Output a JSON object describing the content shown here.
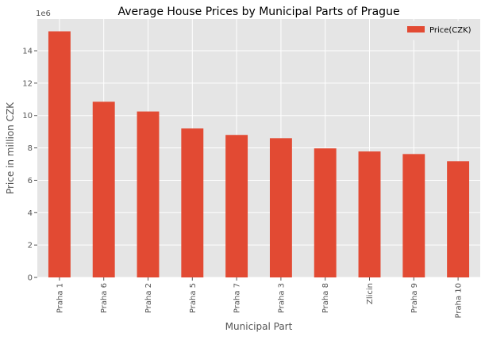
{
  "chart_data": {
    "type": "bar",
    "title": "Average House Prices by Municipal Parts of Prague",
    "xlabel": "Municipal Part",
    "ylabel": "Price in million CZK",
    "y_offset_label": "1e6",
    "categories": [
      "Praha 1",
      "Praha 6",
      "Praha 2",
      "Praha 5",
      "Praha 7",
      "Praha 3",
      "Praha 8",
      "Zlicin",
      "Praha 9",
      "Praha 10"
    ],
    "series": [
      {
        "name": "Price(CZK)",
        "color": "#E24A33",
        "values": [
          15200000,
          10850000,
          10250000,
          9200000,
          8800000,
          8600000,
          7970000,
          7780000,
          7620000,
          7180000
        ]
      }
    ],
    "y_ticks": [
      0,
      2,
      4,
      6,
      8,
      10,
      12,
      14
    ],
    "ylim": [
      0,
      15960000
    ],
    "grid": true,
    "legend_position": "top-right",
    "colors": {
      "plot_background": "#E5E5E5",
      "grid": "#FFFFFF",
      "tick_text": "#555555"
    }
  }
}
